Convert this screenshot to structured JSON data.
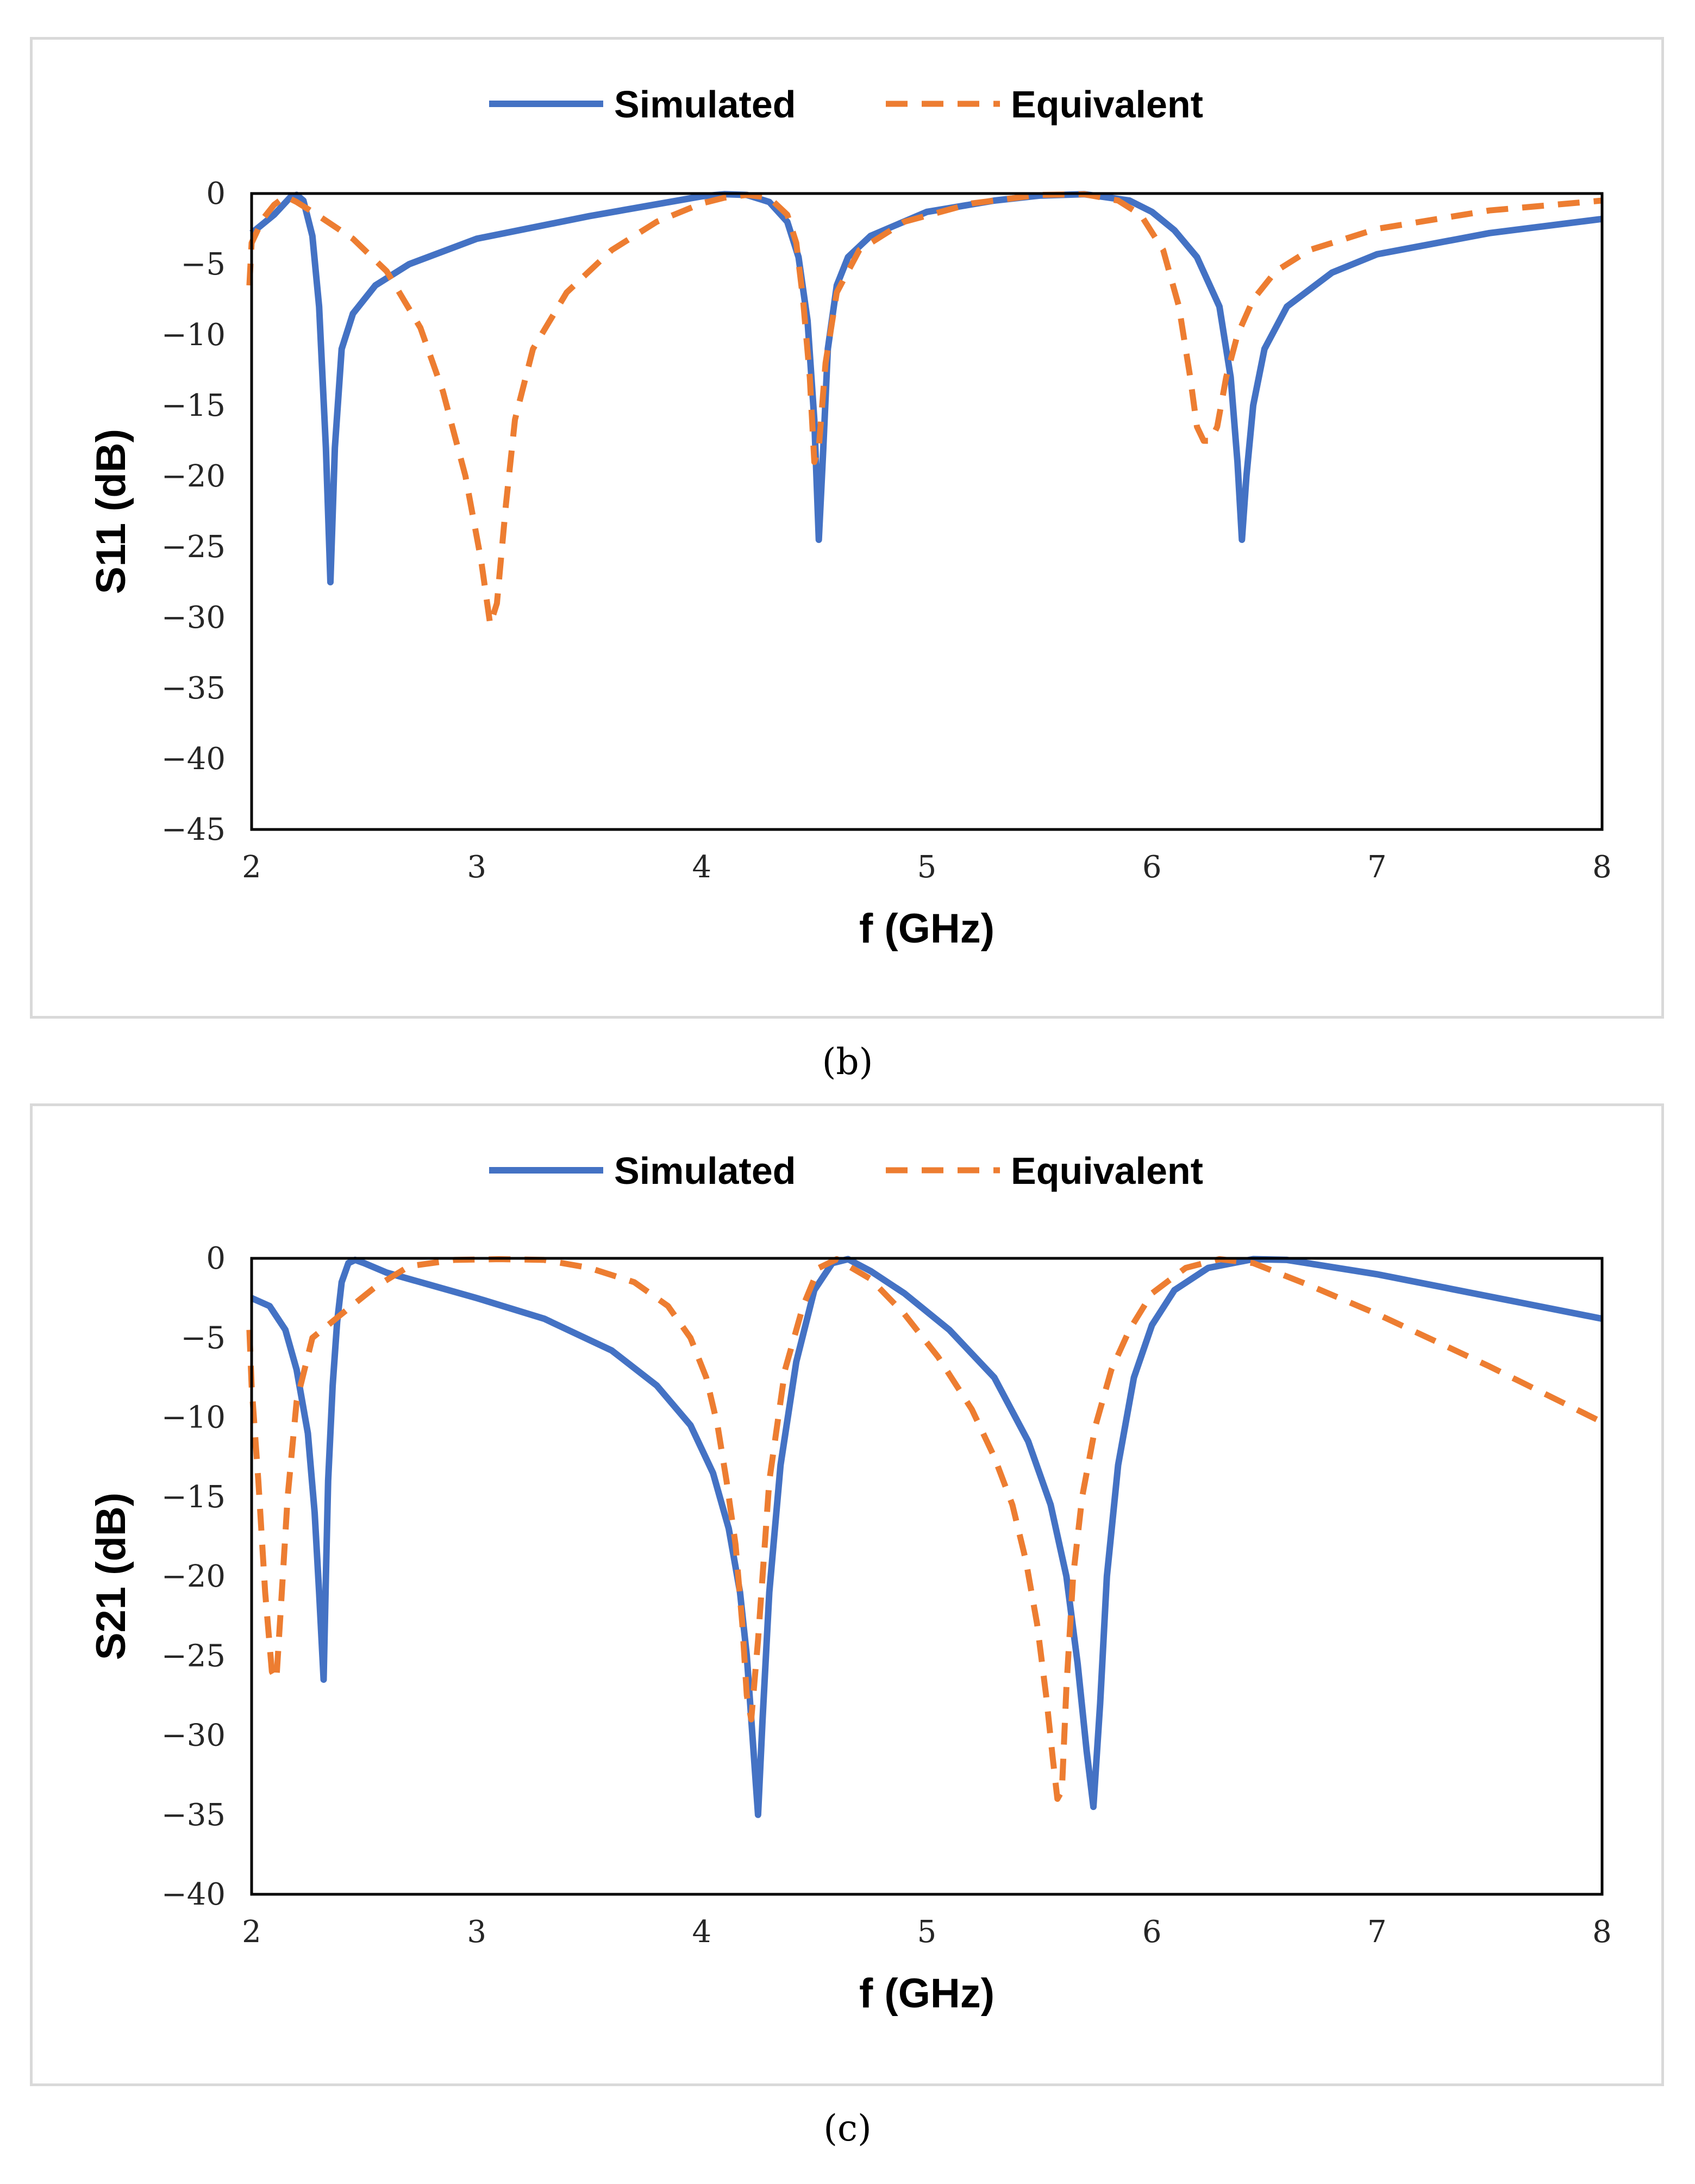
{
  "chart_data": [
    {
      "type": "line",
      "caption": "(b)",
      "xlabel": "f (GHz)",
      "ylabel": "S11 (dB)",
      "xlim": [
        2,
        8
      ],
      "ylim": [
        -45,
        0
      ],
      "xticks": [
        2,
        3,
        4,
        5,
        6,
        7,
        8
      ],
      "yticks": [
        0,
        -5,
        -10,
        -15,
        -20,
        -25,
        -30,
        -35,
        -40,
        -45
      ],
      "grid": false,
      "legend_position": "top-center",
      "series": [
        {
          "name": "Simulated",
          "style": "solid",
          "color": "#4472c4",
          "x": [
            2.0,
            2.1,
            2.17,
            2.2,
            2.23,
            2.27,
            2.3,
            2.33,
            2.35,
            2.37,
            2.4,
            2.45,
            2.55,
            2.7,
            3.0,
            3.5,
            4.0,
            4.1,
            4.2,
            4.3,
            4.38,
            4.43,
            4.47,
            4.5,
            4.52,
            4.54,
            4.56,
            4.6,
            4.65,
            4.75,
            5.0,
            5.3,
            5.5,
            5.7,
            5.9,
            6.0,
            6.1,
            6.2,
            6.3,
            6.35,
            6.38,
            6.4,
            6.42,
            6.45,
            6.5,
            6.6,
            6.8,
            7.0,
            7.5,
            8.0
          ],
          "y": [
            -2.8,
            -1.5,
            -0.3,
            -0.1,
            -0.5,
            -3.0,
            -8.0,
            -18.0,
            -27.5,
            -18.0,
            -11.0,
            -8.5,
            -6.5,
            -5.0,
            -3.2,
            -1.6,
            -0.2,
            -0.05,
            -0.1,
            -0.6,
            -2.0,
            -4.5,
            -9.0,
            -16.0,
            -24.5,
            -18.0,
            -11.0,
            -6.5,
            -4.5,
            -3.0,
            -1.3,
            -0.5,
            -0.15,
            -0.05,
            -0.5,
            -1.3,
            -2.6,
            -4.5,
            -8.0,
            -13.0,
            -19.0,
            -24.5,
            -20.0,
            -15.0,
            -11.0,
            -8.0,
            -5.6,
            -4.3,
            -2.8,
            -1.8
          ]
        },
        {
          "name": "Equivalent",
          "style": "dashed",
          "color": "#ed7d31",
          "x": [
            1.99,
            2.0,
            2.05,
            2.1,
            2.15,
            2.2,
            2.3,
            2.45,
            2.6,
            2.75,
            2.85,
            2.95,
            3.02,
            3.06,
            3.09,
            3.13,
            3.17,
            3.25,
            3.4,
            3.6,
            3.8,
            4.0,
            4.1,
            4.2,
            4.3,
            4.38,
            4.42,
            4.45,
            4.48,
            4.5,
            4.52,
            4.55,
            4.6,
            4.7,
            4.9,
            5.2,
            5.5,
            5.7,
            5.85,
            5.95,
            6.05,
            6.12,
            6.17,
            6.2,
            6.23,
            6.26,
            6.29,
            6.33,
            6.38,
            6.45,
            6.55,
            6.7,
            7.0,
            7.5,
            8.0
          ],
          "y": [
            -6.5,
            -3.5,
            -1.8,
            -0.8,
            -0.2,
            -0.6,
            -1.6,
            -3.2,
            -5.5,
            -9.5,
            -14.0,
            -20.0,
            -26.0,
            -30.5,
            -29.0,
            -22.0,
            -16.0,
            -11.0,
            -7.0,
            -4.0,
            -2.0,
            -0.7,
            -0.3,
            -0.1,
            -0.3,
            -1.5,
            -3.5,
            -7.5,
            -13.0,
            -19.0,
            -18.0,
            -12.0,
            -7.0,
            -4.0,
            -2.0,
            -0.7,
            -0.1,
            -0.05,
            -0.5,
            -1.5,
            -4.0,
            -8.0,
            -13.0,
            -16.5,
            -17.5,
            -17.5,
            -16.5,
            -13.0,
            -10.0,
            -7.5,
            -5.5,
            -4.0,
            -2.5,
            -1.2,
            -0.5
          ]
        }
      ]
    },
    {
      "type": "line",
      "caption": "(c)",
      "xlabel": "f (GHz)",
      "ylabel": "S21 (dB)",
      "xlim": [
        2,
        8
      ],
      "ylim": [
        -40,
        0
      ],
      "xticks": [
        2,
        3,
        4,
        5,
        6,
        7,
        8
      ],
      "yticks": [
        0,
        -5,
        -10,
        -15,
        -20,
        -25,
        -30,
        -35,
        -40
      ],
      "grid": false,
      "legend_position": "top-center",
      "series": [
        {
          "name": "Simulated",
          "style": "solid",
          "color": "#4472c4",
          "x": [
            2.0,
            2.08,
            2.15,
            2.2,
            2.25,
            2.28,
            2.3,
            2.32,
            2.33,
            2.34,
            2.36,
            2.38,
            2.4,
            2.43,
            2.46,
            2.5,
            2.6,
            2.8,
            3.0,
            3.3,
            3.6,
            3.8,
            3.95,
            4.05,
            4.12,
            4.17,
            4.2,
            4.23,
            4.25,
            4.27,
            4.3,
            4.35,
            4.42,
            4.5,
            4.58,
            4.65,
            4.75,
            4.9,
            5.1,
            5.3,
            5.45,
            5.55,
            5.62,
            5.67,
            5.71,
            5.74,
            5.77,
            5.8,
            5.85,
            5.92,
            6.0,
            6.1,
            6.25,
            6.45,
            6.6,
            7.0,
            7.5,
            8.0
          ],
          "y": [
            -2.5,
            -3.0,
            -4.5,
            -7.0,
            -11.0,
            -16.0,
            -21.0,
            -26.5,
            -20.0,
            -14.0,
            -8.0,
            -4.0,
            -1.5,
            -0.3,
            -0.1,
            -0.3,
            -0.9,
            -1.7,
            -2.5,
            -3.8,
            -5.8,
            -8.0,
            -10.5,
            -13.5,
            -17.0,
            -21.0,
            -25.0,
            -31.0,
            -35.0,
            -29.0,
            -21.0,
            -13.0,
            -6.5,
            -2.0,
            -0.3,
            -0.05,
            -0.8,
            -2.2,
            -4.5,
            -7.5,
            -11.5,
            -15.5,
            -20.0,
            -25.5,
            -31.0,
            -34.5,
            -28.0,
            -20.0,
            -13.0,
            -7.5,
            -4.2,
            -2.0,
            -0.6,
            -0.05,
            -0.1,
            -1.0,
            -2.4,
            -3.8
          ]
        },
        {
          "name": "Equivalent",
          "style": "dashed",
          "color": "#ed7d31",
          "x": [
            1.99,
            2.0,
            2.03,
            2.06,
            2.09,
            2.11,
            2.13,
            2.16,
            2.2,
            2.27,
            2.4,
            2.55,
            2.7,
            2.9,
            3.1,
            3.3,
            3.5,
            3.7,
            3.85,
            3.95,
            4.02,
            4.07,
            4.11,
            4.15,
            4.18,
            4.2,
            4.22,
            4.25,
            4.3,
            4.37,
            4.45,
            4.52,
            4.6,
            4.75,
            4.9,
            5.05,
            5.2,
            5.3,
            5.38,
            5.44,
            5.49,
            5.53,
            5.56,
            5.58,
            5.6,
            5.62,
            5.65,
            5.69,
            5.75,
            5.82,
            5.9,
            6.0,
            6.15,
            6.3,
            6.45,
            6.7,
            7.0,
            7.5,
            8.0
          ],
          "y": [
            -4.5,
            -8.0,
            -14.0,
            -21.0,
            -26.0,
            -26.5,
            -22.0,
            -15.0,
            -9.0,
            -5.0,
            -3.5,
            -1.8,
            -0.5,
            -0.1,
            -0.05,
            -0.1,
            -0.6,
            -1.5,
            -3.0,
            -5.0,
            -7.5,
            -10.5,
            -14.0,
            -18.0,
            -23.0,
            -27.5,
            -29.0,
            -24.0,
            -14.0,
            -7.0,
            -3.0,
            -0.6,
            -0.05,
            -1.3,
            -3.5,
            -6.2,
            -9.5,
            -12.5,
            -15.5,
            -19.0,
            -23.0,
            -27.5,
            -31.5,
            -34.0,
            -33.5,
            -27.0,
            -20.0,
            -15.0,
            -10.5,
            -7.0,
            -4.5,
            -2.2,
            -0.6,
            -0.05,
            -0.3,
            -1.7,
            -3.5,
            -6.8,
            -10.3
          ]
        }
      ]
    }
  ]
}
